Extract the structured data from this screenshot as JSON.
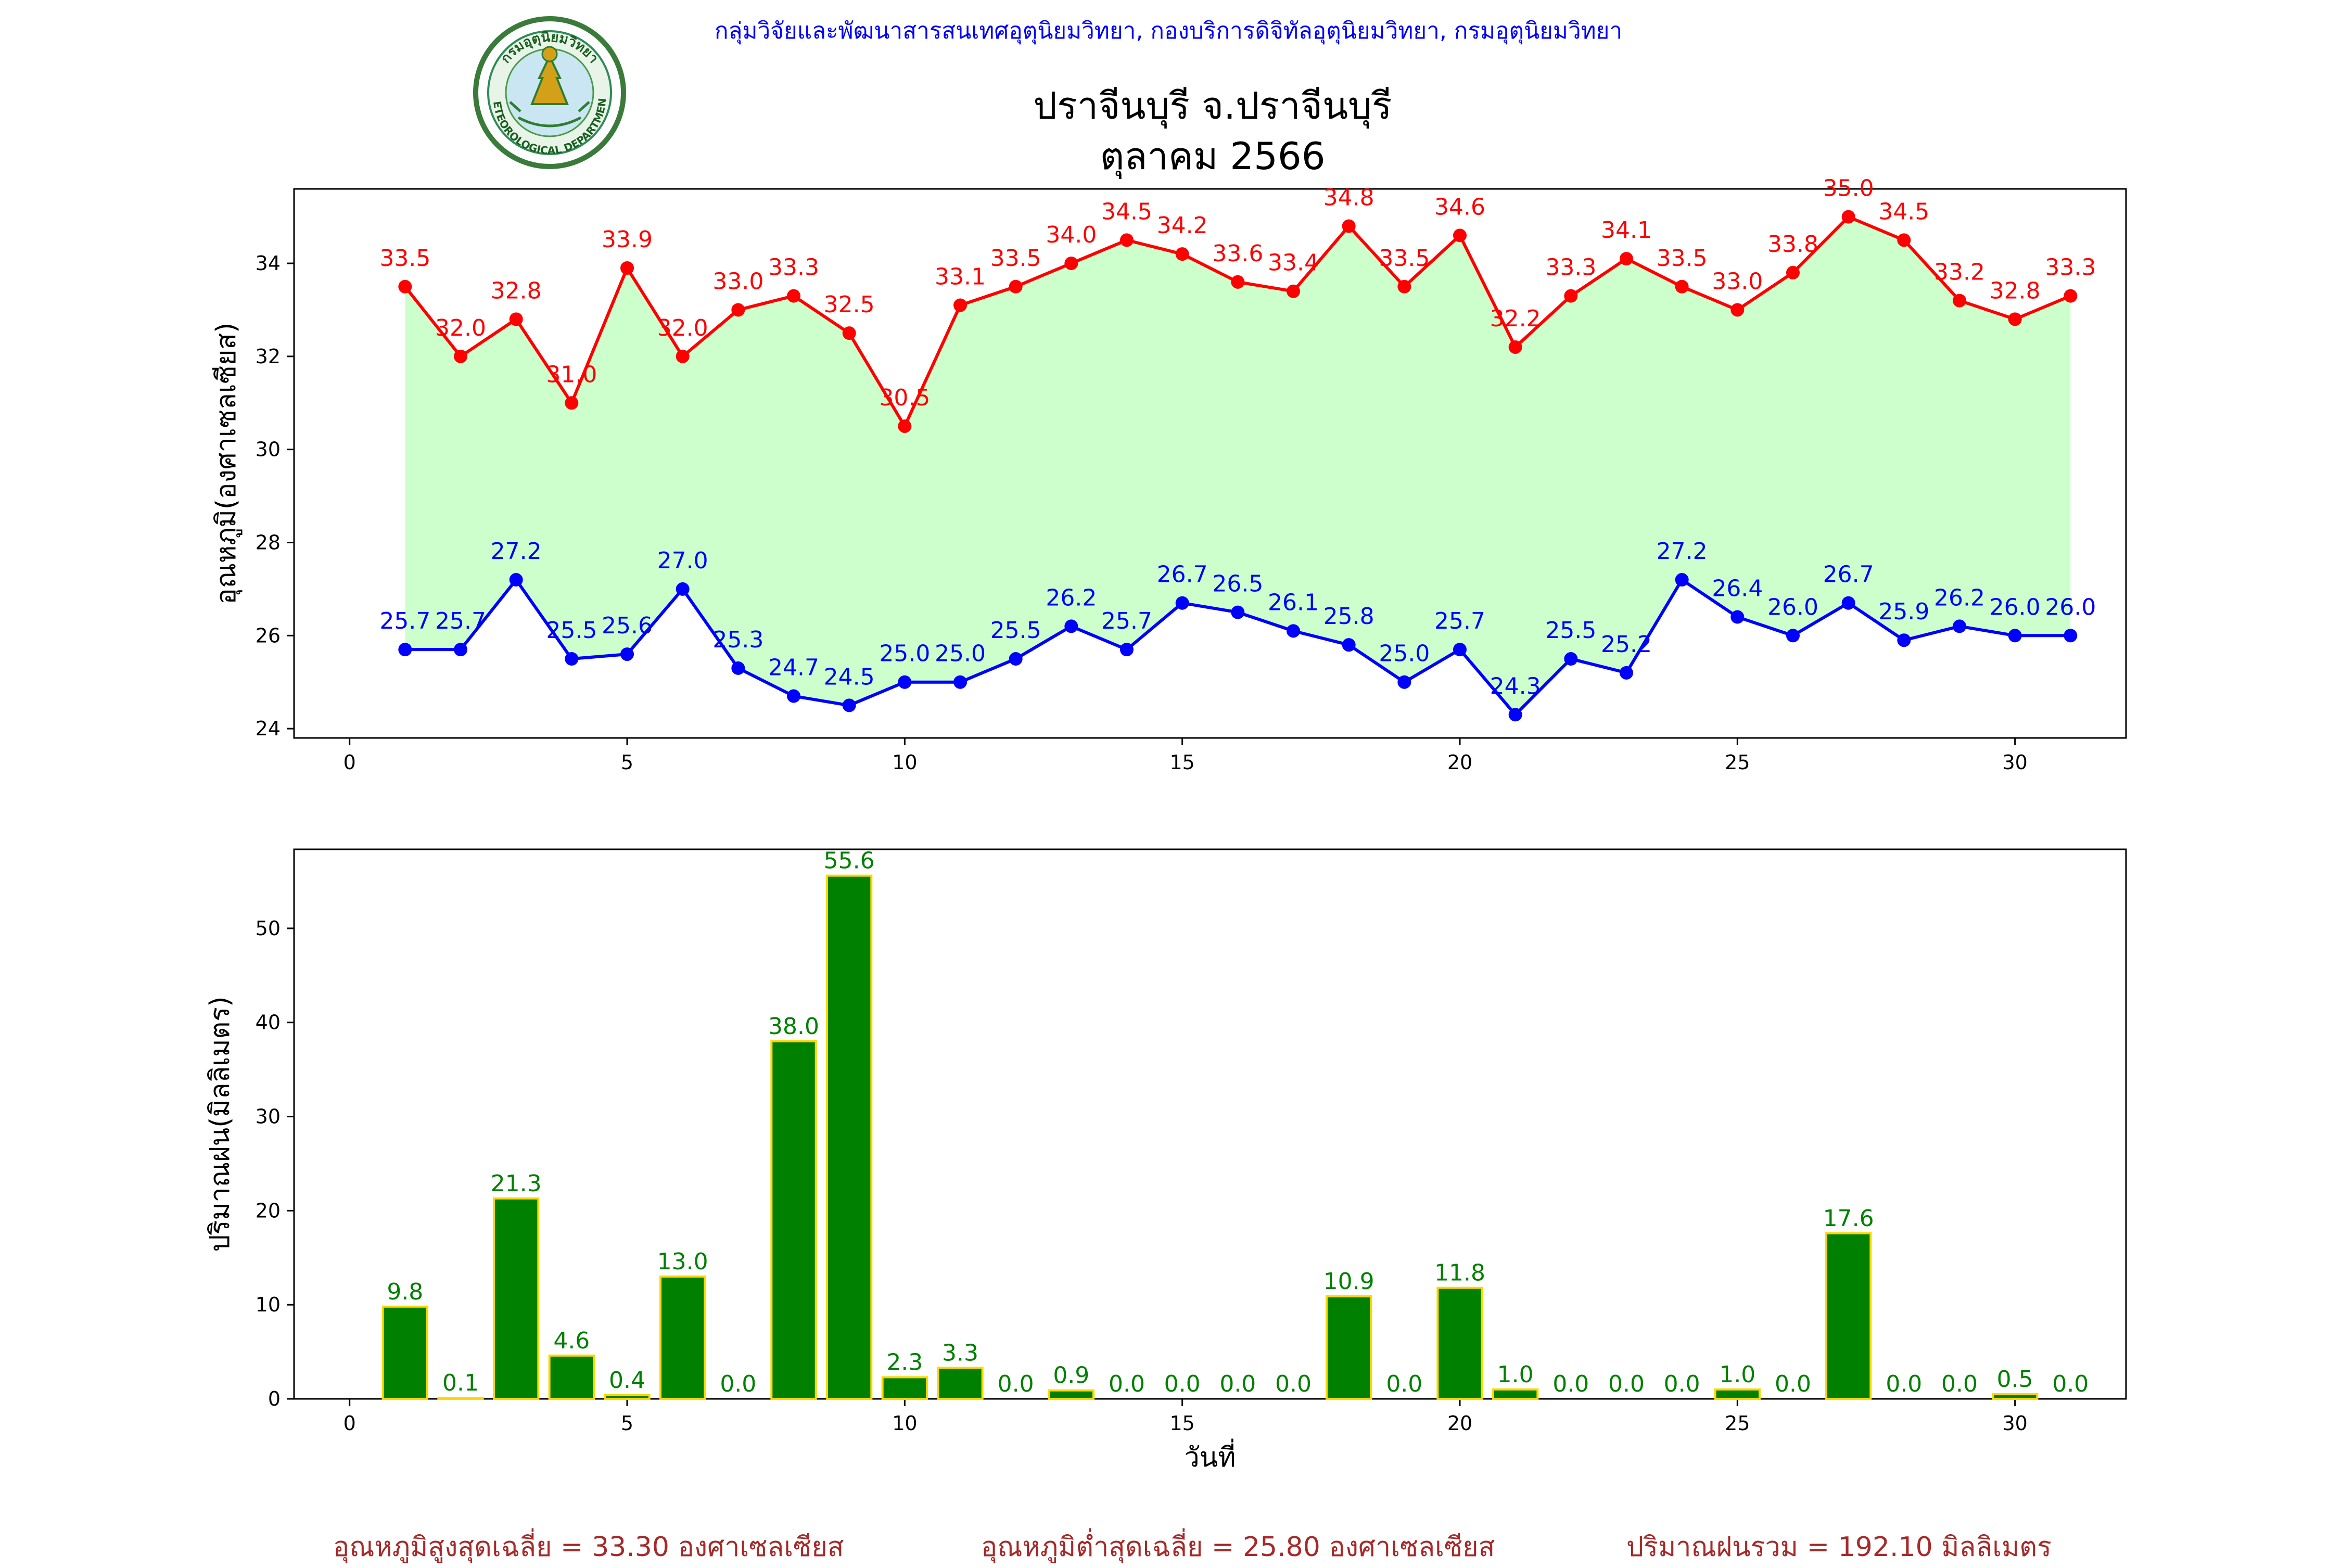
{
  "header": {
    "agency": "กลุ่มวิจัยและพัฒนาสารสนเทศอุตุนิยมวิทยา, กองบริการดิจิทัลอุตุนิยมวิทยา, กรมอุตุนิยมวิทยา",
    "title_line1": "ปราจีนบุรี จ.ปราจีนบุรี",
    "title_line2": "ตุลาคม 2566",
    "logo_text_top": "กรมอุตุนิยมวิทยา",
    "logo_text_bottom": "METEOROLOGICAL DEPARTMENT"
  },
  "colors": {
    "agency": "#0000ff",
    "max_series": "#ff0000",
    "min_series": "#0000ff",
    "band_fill": "#ccffcc",
    "rain_bar": "#008000",
    "rain_edge": "#ffd700",
    "rain_label": "#008000",
    "summary": "#a52a2a"
  },
  "chart_data": [
    {
      "type": "line",
      "title": "",
      "xlabel": "",
      "ylabel": "อุณหภูมิ(องศาเซลเซียส)",
      "xlim": [
        -1,
        32
      ],
      "ylim": [
        23.8,
        35.6
      ],
      "xticks": [
        0,
        5,
        10,
        15,
        20,
        25,
        30
      ],
      "yticks": [
        24,
        26,
        28,
        30,
        32,
        34
      ],
      "grid": false,
      "fill_between": true,
      "x": [
        1,
        2,
        3,
        4,
        5,
        6,
        7,
        8,
        9,
        10,
        11,
        12,
        13,
        14,
        15,
        16,
        17,
        18,
        19,
        20,
        21,
        22,
        23,
        24,
        25,
        26,
        27,
        28,
        29,
        30,
        31
      ],
      "series": [
        {
          "values": [
            33.5,
            32.0,
            32.8,
            31.0,
            33.9,
            32.0,
            33.0,
            33.3,
            32.5,
            30.5,
            33.1,
            33.5,
            34.0,
            34.5,
            34.2,
            33.6,
            33.4,
            34.8,
            33.5,
            34.6,
            32.2,
            33.3,
            34.1,
            33.5,
            33.0,
            33.8,
            35.0,
            34.5,
            33.2,
            32.8,
            33.3
          ]
        },
        {
          "values": [
            25.7,
            25.7,
            27.2,
            25.5,
            25.6,
            27.0,
            25.3,
            24.7,
            24.5,
            25.0,
            25.0,
            25.5,
            26.2,
            25.7,
            26.7,
            26.5,
            26.1,
            25.8,
            25.0,
            25.7,
            24.3,
            25.5,
            25.2,
            27.2,
            26.4,
            26.0,
            26.7,
            25.9,
            26.2,
            26.0,
            26.0
          ]
        }
      ]
    },
    {
      "type": "bar",
      "title": "",
      "xlabel": "วันที่",
      "ylabel": "ปริมาณฝน(มิลลิเมตร)",
      "xlim": [
        -1,
        32
      ],
      "ylim": [
        0,
        58.4
      ],
      "xticks": [
        0,
        5,
        10,
        15,
        20,
        25,
        30
      ],
      "yticks": [
        0,
        10,
        20,
        30,
        40,
        50
      ],
      "grid": false,
      "x": [
        1,
        2,
        3,
        4,
        5,
        6,
        7,
        8,
        9,
        10,
        11,
        12,
        13,
        14,
        15,
        16,
        17,
        18,
        19,
        20,
        21,
        22,
        23,
        24,
        25,
        26,
        27,
        28,
        29,
        30,
        31
      ],
      "values": [
        9.8,
        0.1,
        21.3,
        4.6,
        0.4,
        13.0,
        0.0,
        38.0,
        55.6,
        2.3,
        3.3,
        0.0,
        0.9,
        0.0,
        0.0,
        0.0,
        0.0,
        10.9,
        0.0,
        11.8,
        1.0,
        0.0,
        0.0,
        0.0,
        1.0,
        0.0,
        17.6,
        0.0,
        0.0,
        0.5,
        0.0
      ]
    }
  ],
  "summary": {
    "max_avg": "อุณหภูมิสูงสุดเฉลี่ย = 33.30 องศาเซลเซียส",
    "min_avg": "อุณหภูมิต่ำสุดเฉลี่ย = 25.80 องศาเซลเซียส",
    "rain_total": "ปริมาณฝนรวม = 192.10 มิลลิเมตร"
  }
}
